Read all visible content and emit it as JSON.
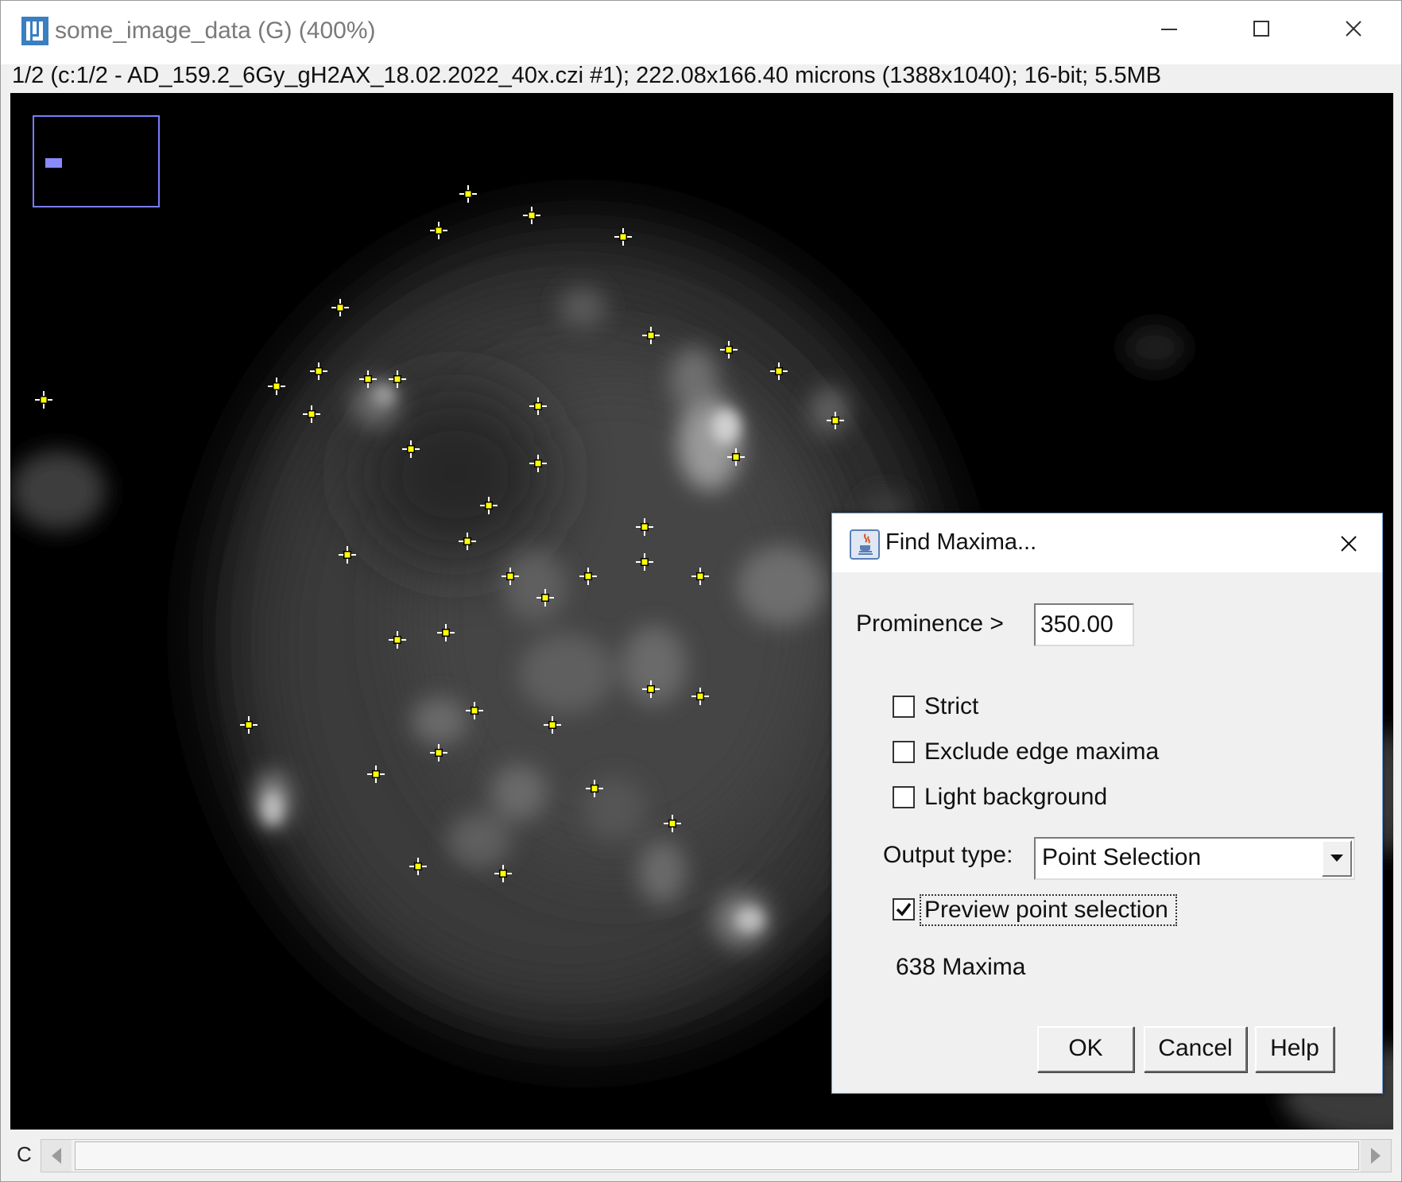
{
  "window": {
    "title": "some_image_data (G) (400%)",
    "info": "1/2 (c:1/2 - AD_159.2_6Gy_gH2AX_18.02.2022_40x.czi #1); 222.08x166.40 microns (1388x1040); 16-bit; 5.5MB"
  },
  "scrollbar": {
    "channel_label": "C"
  },
  "dialog": {
    "title": "Find Maxima...",
    "prominence_label": "Prominence >",
    "prominence_value": "350.00",
    "checkboxes": [
      {
        "label": "Strict",
        "checked": false
      },
      {
        "label": "Exclude edge maxima",
        "checked": false
      },
      {
        "label": "Light background",
        "checked": false
      }
    ],
    "output_type_label": "Output type:",
    "output_type_value": "Point Selection",
    "preview": {
      "label": "Preview point selection",
      "checked": true
    },
    "maxima_count": "638 Maxima",
    "buttons": {
      "ok": "OK",
      "cancel": "Cancel",
      "help": "Help"
    }
  },
  "colors": {
    "marker": "#ffff00",
    "marker_cross": "#ffffff",
    "navigator": "#7b7bff",
    "background": "#000000"
  },
  "icons": [
    "imagej-icon",
    "minimize-icon",
    "maximize-icon",
    "close-icon",
    "java-icon",
    "dialog-close-icon",
    "checkmark-icon",
    "chevron-down-icon",
    "scroll-left-icon",
    "scroll-right-icon"
  ]
}
